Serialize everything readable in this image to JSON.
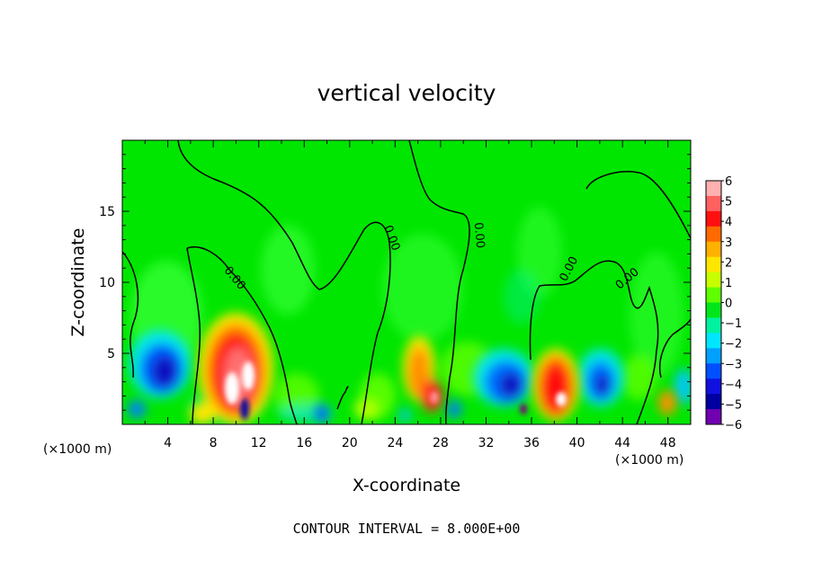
{
  "chart_data": {
    "type": "heatmap",
    "title": "vertical velocity",
    "xlabel": "X-coordinate",
    "ylabel": "Z-coordinate",
    "x_unit_left": "(×1000 m)",
    "x_unit_right": "(×1000 m)",
    "footer": "CONTOUR INTERVAL = 8.000E+00",
    "xlim": [
      0,
      50
    ],
    "ylim": [
      0,
      20
    ],
    "x_ticks": [
      4,
      8,
      12,
      16,
      20,
      24,
      28,
      32,
      36,
      40,
      44,
      48
    ],
    "y_ticks": [
      5,
      10,
      15
    ],
    "contour_label": "0.00",
    "colorbar": {
      "ticks": [
        "6",
        "5",
        "4",
        "3",
        "2",
        "1",
        "0",
        "−1",
        "−2",
        "−3",
        "−4",
        "−5",
        "−6"
      ],
      "colors": [
        "#ffb0b0",
        "#ff6060",
        "#ff1010",
        "#ff6a00",
        "#ffb000",
        "#ffe600",
        "#c8ff00",
        "#5fff00",
        "#00e61a",
        "#00f2a0",
        "#00e6ff",
        "#00a0ff",
        "#0050ff",
        "#1010e0",
        "#0000a0",
        "#7000b0"
      ]
    },
    "features": [
      {
        "x": 3.5,
        "z": 3.5,
        "value": -4.5
      },
      {
        "x": 10.0,
        "z": 3.5,
        "value": 6.0
      },
      {
        "x": 11.0,
        "z": 1.0,
        "value": -6.0
      },
      {
        "x": 18.0,
        "z": 0.8,
        "value": -3.0
      },
      {
        "x": 26.0,
        "z": 4.0,
        "value": 3.0
      },
      {
        "x": 27.0,
        "z": 2.0,
        "value": 5.0
      },
      {
        "x": 34.5,
        "z": 3.0,
        "value": -4.5
      },
      {
        "x": 38.0,
        "z": 2.8,
        "value": 5.5
      },
      {
        "x": 42.0,
        "z": 3.2,
        "value": -4.0
      },
      {
        "x": 48.0,
        "z": 1.5,
        "value": 3.0
      }
    ]
  }
}
